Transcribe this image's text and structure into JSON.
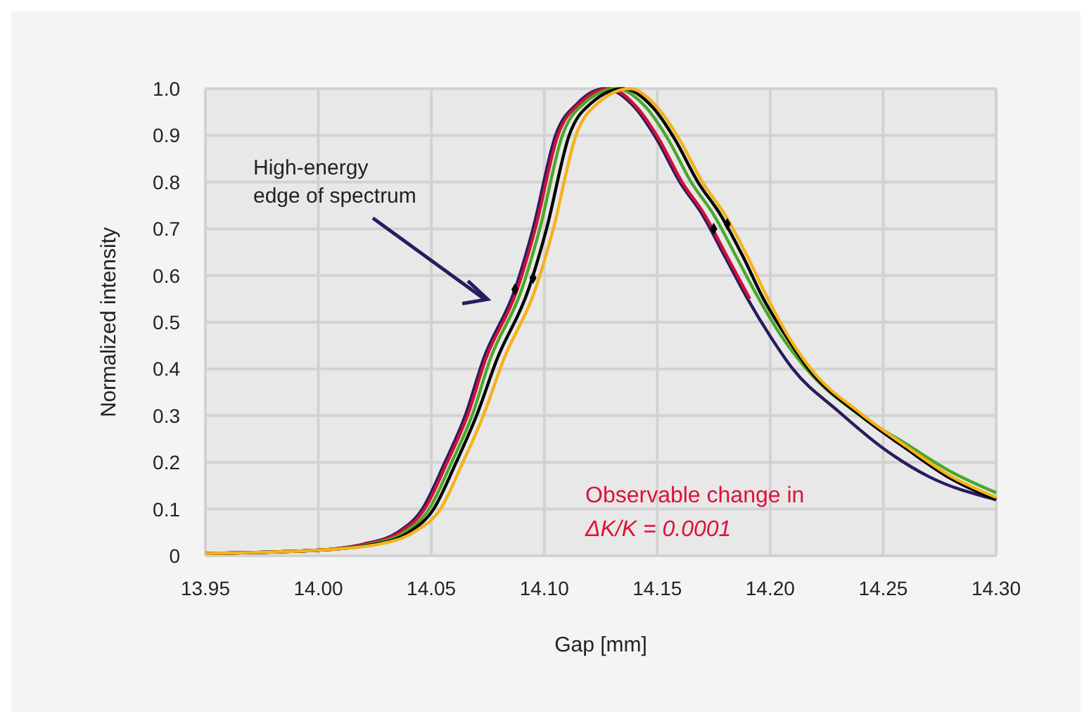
{
  "chart_data": {
    "type": "line",
    "xlabel": "Gap [mm]",
    "ylabel": "Normalized intensity",
    "xlim": [
      13.95,
      14.3
    ],
    "ylim": [
      0,
      1
    ],
    "xticks": [
      {
        "value": 13.95,
        "label": "13.95"
      },
      {
        "value": 14,
        "label": "14.00"
      },
      {
        "value": 14.05,
        "label": "14.05"
      },
      {
        "value": 14.1,
        "label": "14.10"
      },
      {
        "value": 14.15,
        "label": "14.15"
      },
      {
        "value": 14.2,
        "label": "14.20"
      },
      {
        "value": 14.25,
        "label": "14.25"
      },
      {
        "value": 14.3,
        "label": "14.30"
      }
    ],
    "yticks": [
      0,
      0.1,
      0.2,
      0.3,
      0.4,
      0.5,
      0.6,
      0.7,
      0.8,
      0.9,
      {
        "value": 1,
        "label": "1.0"
      }
    ],
    "grid": true,
    "line_style": "solid",
    "marker": "none",
    "series": [
      {
        "color": "#2a1b5e",
        "x": [
          13.95,
          14.0,
          14.02,
          14.035,
          14.046,
          14.056,
          14.065,
          14.073,
          14.087,
          14.095,
          14.105,
          14.115,
          14.127,
          14.14,
          14.15,
          14.16,
          14.17,
          14.18,
          14.19,
          14.2,
          14.21,
          14.23,
          14.25,
          14.27,
          14.3
        ],
        "values": [
          0.005,
          0.012,
          0.025,
          0.05,
          0.1,
          0.2,
          0.3,
          0.42,
          0.57,
          0.7,
          0.9,
          0.97,
          1.0,
          0.96,
          0.89,
          0.8,
          0.73,
          0.64,
          0.55,
          0.47,
          0.4,
          0.31,
          0.23,
          0.17,
          0.12
        ]
      },
      {
        "color": "#d0103a",
        "x": [
          13.95,
          14.0,
          14.021,
          14.036,
          14.047,
          14.057,
          14.066,
          14.074,
          14.088,
          14.096,
          14.106,
          14.116,
          14.129,
          14.141,
          14.151,
          14.161,
          14.171,
          14.181,
          14.191
        ],
        "values": [
          0.005,
          0.012,
          0.025,
          0.05,
          0.1,
          0.2,
          0.3,
          0.42,
          0.57,
          0.7,
          0.9,
          0.97,
          1.0,
          0.96,
          0.89,
          0.8,
          0.73,
          0.64,
          0.55
        ]
      },
      {
        "color": "#4aa82a",
        "x": [
          13.95,
          14.0,
          14.023,
          14.038,
          14.049,
          14.059,
          14.068,
          14.076,
          14.09,
          14.098,
          14.108,
          14.118,
          14.132,
          14.145,
          14.155,
          14.165,
          14.175,
          14.185,
          14.195,
          14.205,
          14.216,
          14.24,
          14.26,
          14.28,
          14.3
        ],
        "values": [
          0.005,
          0.012,
          0.025,
          0.05,
          0.1,
          0.2,
          0.3,
          0.42,
          0.57,
          0.7,
          0.9,
          0.97,
          1.0,
          0.96,
          0.89,
          0.8,
          0.73,
          0.64,
          0.55,
          0.47,
          0.4,
          0.3,
          0.24,
          0.18,
          0.135
        ]
      },
      {
        "color": "#000000",
        "x": [
          13.95,
          14.0,
          14.025,
          14.04,
          14.051,
          14.061,
          14.07,
          14.079,
          14.093,
          14.101,
          14.111,
          14.121,
          14.135,
          14.148,
          14.158,
          14.168,
          14.178,
          14.188,
          14.197,
          14.207,
          14.217,
          14.24,
          14.26,
          14.28,
          14.3
        ],
        "values": [
          0.005,
          0.012,
          0.025,
          0.05,
          0.1,
          0.2,
          0.3,
          0.42,
          0.57,
          0.7,
          0.9,
          0.97,
          1.0,
          0.96,
          0.89,
          0.8,
          0.73,
          0.64,
          0.55,
          0.47,
          0.4,
          0.3,
          0.23,
          0.165,
          0.12
        ]
      },
      {
        "color": "#f6b21a",
        "x": [
          13.95,
          14.0,
          14.027,
          14.042,
          14.054,
          14.064,
          14.073,
          14.082,
          14.096,
          14.104,
          14.114,
          14.124,
          14.138,
          14.15,
          14.16,
          14.17,
          14.18,
          14.19,
          14.199,
          14.208,
          14.218,
          14.24,
          14.26,
          14.28,
          14.3
        ],
        "values": [
          0.005,
          0.012,
          0.025,
          0.05,
          0.1,
          0.2,
          0.3,
          0.42,
          0.57,
          0.7,
          0.9,
          0.97,
          1.0,
          0.96,
          0.89,
          0.8,
          0.73,
          0.64,
          0.55,
          0.47,
          0.4,
          0.305,
          0.235,
          0.17,
          0.125
        ]
      },
      {
        "type": "scatter",
        "marker": "diamond",
        "color": "#000000",
        "x": [
          14.087,
          14.095,
          14.175,
          14.181
        ],
        "values": [
          0.57,
          0.595,
          0.7,
          0.71
        ]
      }
    ],
    "annotations": [
      "High-energy\nedge of spectrum",
      "Observable change in\nΔK/K = 0.0001"
    ]
  }
}
